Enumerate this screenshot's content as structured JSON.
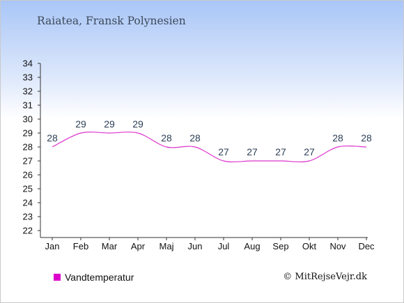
{
  "header": {
    "title": "Raiatea, Fransk Polynesien"
  },
  "colors": {
    "series": "#dd33cc",
    "legend_swatch": "#dd00cc",
    "axis": "#333333"
  },
  "legend": {
    "label": "Vandtemperatur"
  },
  "credit": "© MitRejseVejr.dk",
  "chart_data": {
    "type": "line",
    "title": "Raiatea, Fransk Polynesien",
    "xlabel": "",
    "ylabel": "",
    "categories": [
      "Jan",
      "Feb",
      "Mar",
      "Apr",
      "Maj",
      "Jun",
      "Jul",
      "Aug",
      "Sep",
      "Okt",
      "Nov",
      "Dec"
    ],
    "series": [
      {
        "name": "Vandtemperatur",
        "values": [
          28,
          29,
          29,
          29,
          28,
          28,
          27,
          27,
          27,
          27,
          28,
          28
        ]
      }
    ],
    "ylim": [
      22,
      34
    ],
    "yticks": [
      "22",
      "23",
      "24",
      "25",
      "26",
      "27",
      "28",
      "29",
      "30",
      "31",
      "32",
      "33",
      "34"
    ],
    "grid": false,
    "legend_position": "bottom-left"
  }
}
